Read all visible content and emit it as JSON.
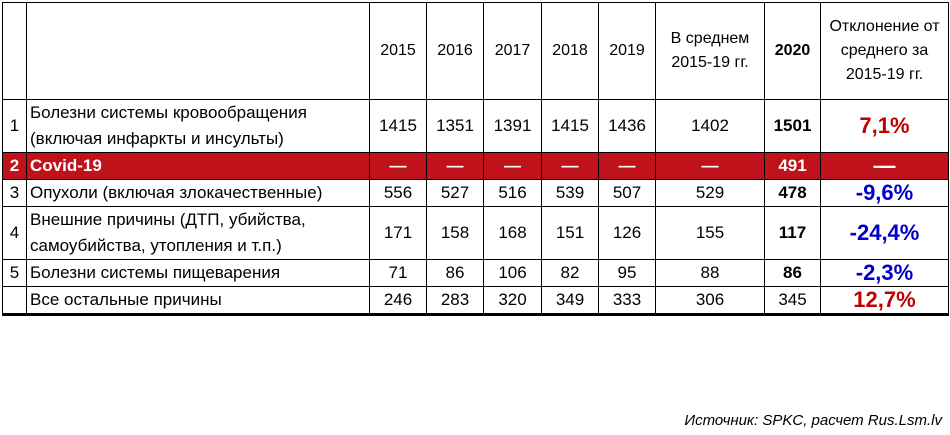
{
  "table": {
    "header": [
      "",
      "",
      "2015",
      "2016",
      "2017",
      "2018",
      "2019",
      "В среднем 2015-19 гг.",
      "2020",
      "Отклонение от среднего за 2015-19 гг."
    ],
    "rows": [
      {
        "num": "1",
        "name": "Болезни системы кровообращения (включая инфаркты и инсульты)",
        "values": [
          1415,
          1351,
          1391,
          1415,
          1436,
          1402,
          1501
        ],
        "deviation": "7,1%",
        "color": "#c00000"
      },
      {
        "num": "2",
        "name": "Covid-19",
        "values": [
          "—",
          "—",
          "—",
          "—",
          "—",
          "—",
          491
        ],
        "deviation": "—",
        "color": "#ffffff",
        "highlight": true
      },
      {
        "num": "3",
        "name": "Опухоли (включая злокачественные)",
        "values": [
          556,
          527,
          516,
          539,
          507,
          529,
          478
        ],
        "deviation": "-9,6%",
        "color": "#0000cc"
      },
      {
        "num": "4",
        "name": "Внешние причины (ДТП, убийства, самоубийства, утопления и т.п.)",
        "values": [
          171,
          158,
          168,
          151,
          126,
          155,
          117
        ],
        "deviation": "-24,4%",
        "color": "#0000cc"
      },
      {
        "num": "5",
        "name": "Болезни системы пищеварения",
        "values": [
          71,
          86,
          106,
          82,
          95,
          88,
          86
        ],
        "deviation": "-2,3%",
        "color": "#0000cc"
      },
      {
        "num": "",
        "name": "Все остальные причины",
        "values": [
          246,
          283,
          320,
          349,
          333,
          306,
          345
        ],
        "deviation": "12,7%",
        "color": "#c00000",
        "plain2020": true
      }
    ]
  },
  "source": "Источник: SPKC, расчет Rus.Lsm.lv"
}
